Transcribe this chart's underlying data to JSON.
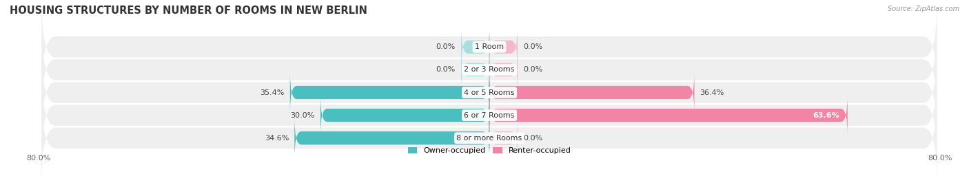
{
  "title": "HOUSING STRUCTURES BY NUMBER OF ROOMS IN NEW BERLIN",
  "source": "Source: ZipAtlas.com",
  "categories": [
    "1 Room",
    "2 or 3 Rooms",
    "4 or 5 Rooms",
    "6 or 7 Rooms",
    "8 or more Rooms"
  ],
  "owner_values": [
    0.0,
    0.0,
    35.4,
    30.0,
    34.6
  ],
  "renter_values": [
    0.0,
    0.0,
    36.4,
    63.6,
    0.0
  ],
  "owner_color": "#4bbfbf",
  "renter_color": "#f285a5",
  "owner_color_light": "#a8dede",
  "renter_color_light": "#f5b8cb",
  "row_bg_color": "#efefef",
  "x_min": -80.0,
  "x_max": 80.0,
  "stub_value": 5.0,
  "title_fontsize": 10.5,
  "label_fontsize": 8,
  "tick_fontsize": 8,
  "figsize": [
    14.06,
    2.69
  ],
  "dpi": 100
}
